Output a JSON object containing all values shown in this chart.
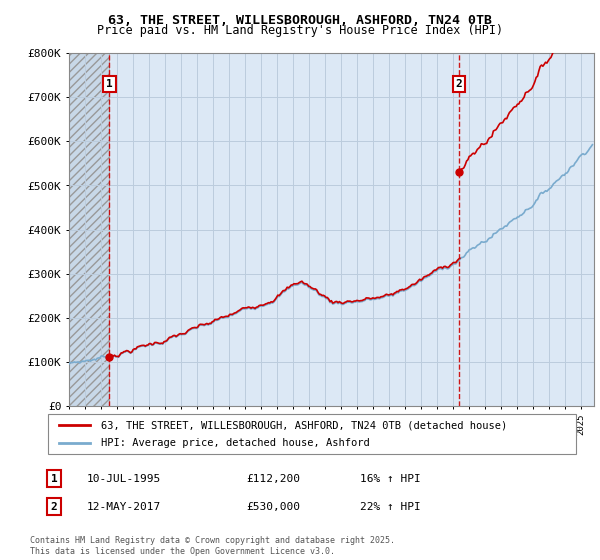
{
  "title": "63, THE STREET, WILLESBOROUGH, ASHFORD, TN24 0TB",
  "subtitle": "Price paid vs. HM Land Registry's House Price Index (HPI)",
  "ylim": [
    0,
    800000
  ],
  "xlim_start": 1993.0,
  "xlim_end": 2025.8,
  "point1_date": 1995.53,
  "point1_value": 112200,
  "point1_label": "1",
  "point2_date": 2017.36,
  "point2_value": 530000,
  "point2_label": "2",
  "line1_color": "#cc0000",
  "line2_color": "#7aabce",
  "dashed_color": "#cc0000",
  "hatch_facecolor": "#dde8f0",
  "hatch_edgecolor": "#aaaaaa",
  "plot_bg_color": "#dce8f5",
  "fig_bg_color": "#ffffff",
  "grid_color": "#bbccdd",
  "legend1_label": "63, THE STREET, WILLESBOROUGH, ASHFORD, TN24 0TB (detached house)",
  "legend2_label": "HPI: Average price, detached house, Ashford",
  "ann1_date": "10-JUL-1995",
  "ann1_price": "£112,200",
  "ann1_hpi": "16% ↑ HPI",
  "ann2_date": "12-MAY-2017",
  "ann2_price": "£530,000",
  "ann2_hpi": "22% ↑ HPI",
  "footnote": "Contains HM Land Registry data © Crown copyright and database right 2025.\nThis data is licensed under the Open Government Licence v3.0.",
  "yticks": [
    0,
    100000,
    200000,
    300000,
    400000,
    500000,
    600000,
    700000,
    800000
  ],
  "ylabels": [
    "£0",
    "£100K",
    "£200K",
    "£300K",
    "£400K",
    "£500K",
    "£600K",
    "£700K",
    "£800K"
  ]
}
